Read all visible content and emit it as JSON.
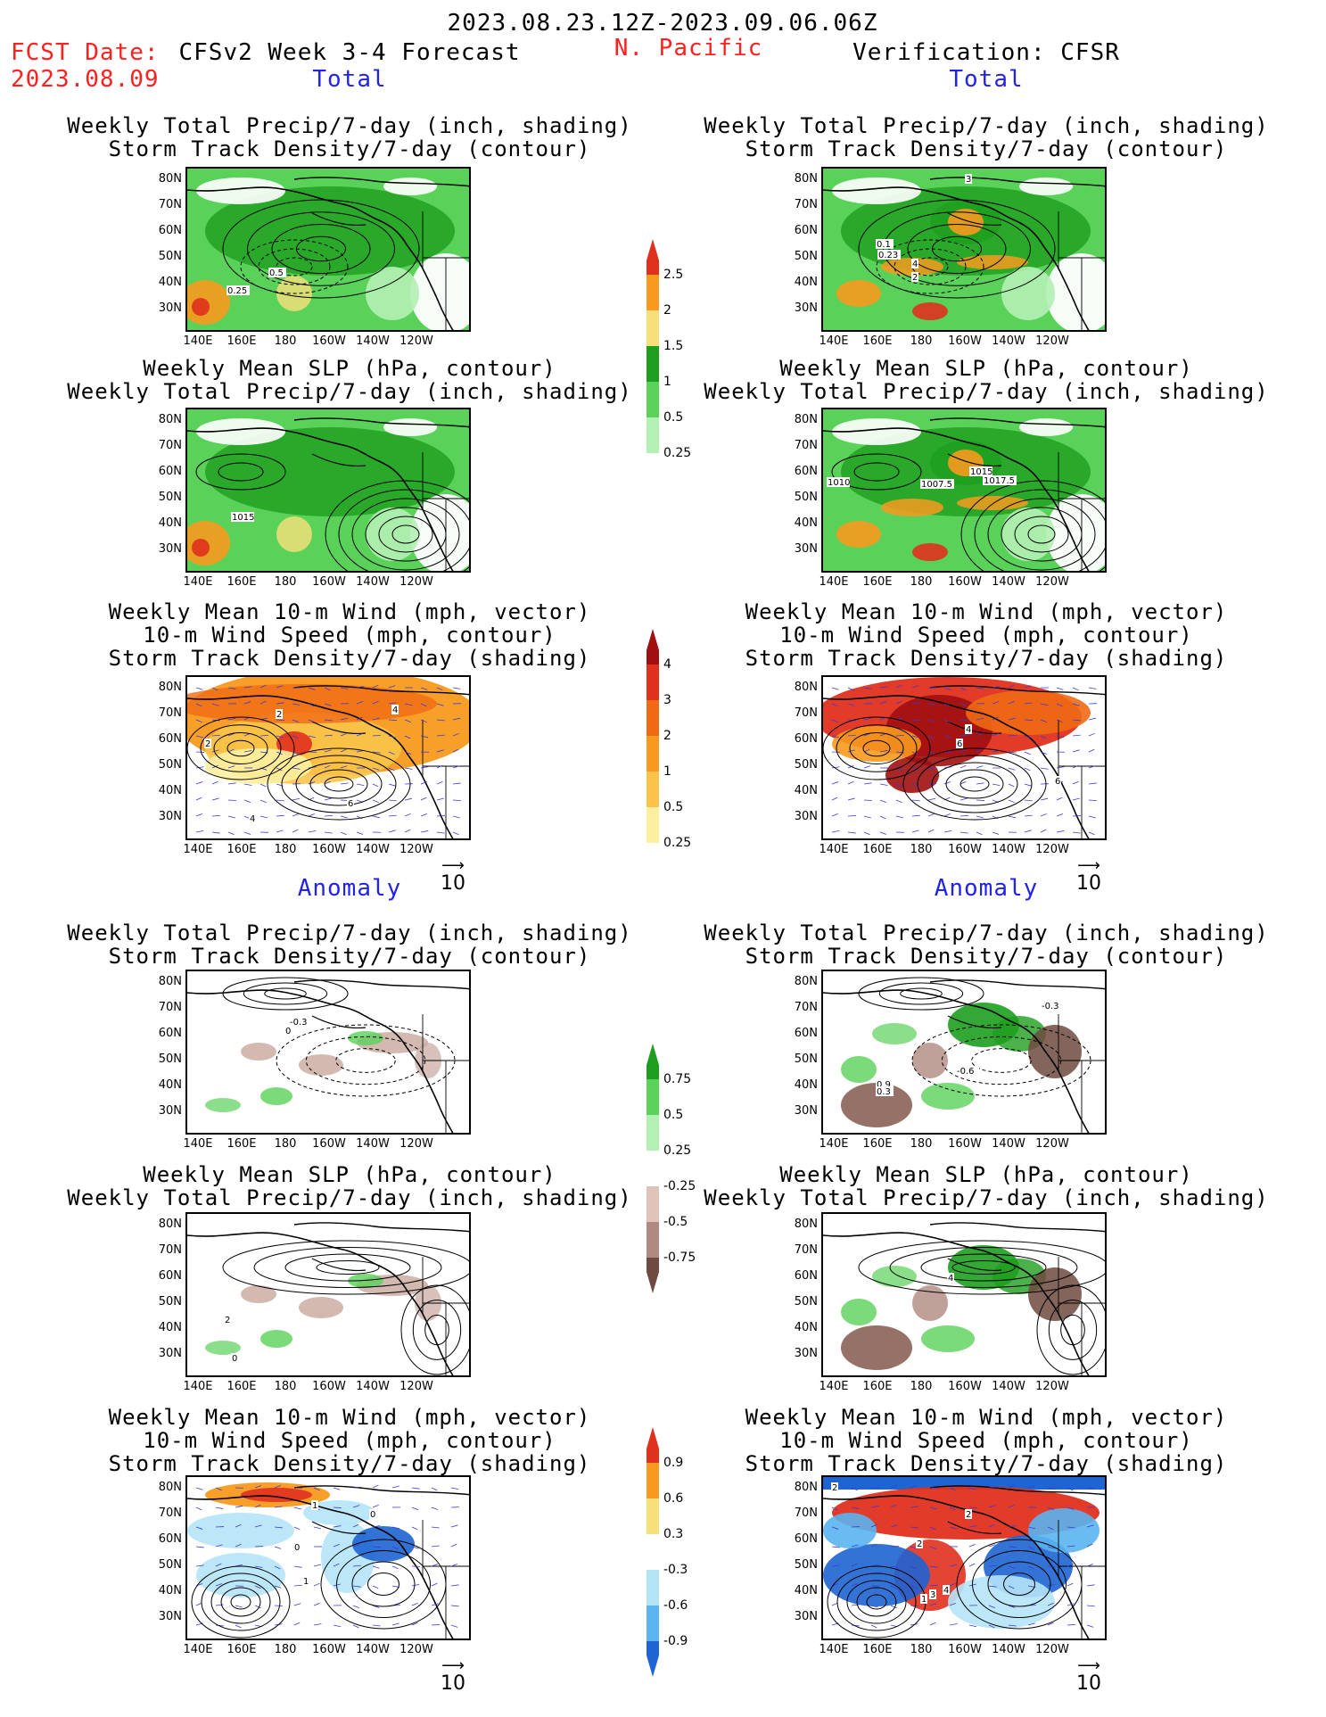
{
  "header": {
    "date_range": "2023.08.23.12Z-2023.09.06.06Z",
    "fcst_label": "FCST Date:",
    "fcst_date": "2023.08.09",
    "model_title": "CFSv2 Week 3-4 Forecast",
    "region": "N. Pacific",
    "verification": "Verification: CFSR"
  },
  "sections": {
    "total": "Total",
    "anomaly": "Anomaly"
  },
  "axes": {
    "lat_labels": [
      "80N",
      "70N",
      "60N",
      "50N",
      "40N",
      "30N"
    ],
    "lon_labels": [
      "140E",
      "160E",
      "180",
      "160W",
      "140W",
      "120W"
    ]
  },
  "panel_titles": {
    "precip_storm": [
      "Weekly Total Precip/7-day (inch, shading)",
      "Storm Track Density/7-day (contour)"
    ],
    "slp_precip": [
      "Weekly Mean SLP (hPa, contour)",
      "Weekly Total Precip/7-day (inch, shading)"
    ],
    "wind_storm": [
      "Weekly Mean 10-m Wind (mph, vector)",
      "10-m Wind Speed (mph, contour)",
      "Storm Track Density/7-day (shading)"
    ]
  },
  "vector_ref": "10",
  "colorbars": {
    "precip_total": {
      "labels": [
        "2.5",
        "2",
        "1.5",
        "1",
        "0.5",
        "0.25"
      ],
      "colors": [
        "#e0301e",
        "#f79a1e",
        "#f7e07a",
        "#1e9e1e",
        "#5ad25a",
        "#b4f0b4"
      ]
    },
    "storm_total": {
      "labels": [
        "4",
        "3",
        "2",
        "1",
        "0.5",
        "0.25"
      ],
      "colors": [
        "#a01010",
        "#e0301e",
        "#f06a14",
        "#f79a1e",
        "#fac44a",
        "#fcf0a0"
      ]
    },
    "precip_anom": {
      "labels": [
        "0.75",
        "0.5",
        "0.25",
        "-0.25",
        "-0.5",
        "-0.75"
      ],
      "colors": [
        "#1e9e1e",
        "#5ad25a",
        "#b4f0b4",
        "#ffffff",
        "#e0c4bc",
        "#b08a80",
        "#6e4a40"
      ]
    },
    "storm_anom": {
      "labels": [
        "0.9",
        "0.6",
        "0.3",
        "-0.3",
        "-0.6",
        "-0.9"
      ],
      "colors": [
        "#e0301e",
        "#f79a1e",
        "#f7e07a",
        "#ffffff",
        "#b4e4f8",
        "#5ab4f0",
        "#1e64d2"
      ]
    }
  },
  "contour_labels": {
    "p1_left": [
      "0.5",
      "0.25"
    ],
    "p1_right": [
      "3",
      "0.1",
      "0.23",
      "4",
      "2"
    ],
    "p2_left": [
      "1015"
    ],
    "p2_right": [
      "1010",
      "1007.5",
      "1015",
      "1017.5"
    ],
    "p3_left": [
      "2",
      "2",
      "4",
      "4",
      "6"
    ],
    "p3_right": [
      "4",
      "6",
      "6"
    ],
    "p4_left": [
      "-0.3",
      "0"
    ],
    "p4_right": [
      "-0.3",
      "-0.6",
      "0.9",
      "0.3"
    ],
    "p5_left": [
      "2",
      "0"
    ],
    "p5_right": [
      "4"
    ],
    "p6_left": [
      "1",
      "0",
      "0",
      "1"
    ],
    "p6_right": [
      "2",
      "2",
      "2",
      "1",
      "3",
      "4"
    ]
  }
}
